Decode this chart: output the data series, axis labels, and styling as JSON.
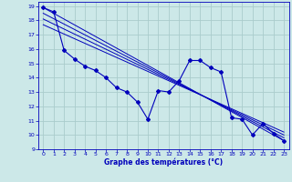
{
  "xlabel": "Graphe des températures (°C)",
  "bg_color": "#cce8e8",
  "grid_color": "#aacccc",
  "line_color": "#0000bb",
  "xlim": [
    -0.5,
    23.5
  ],
  "ylim": [
    9,
    19.3
  ],
  "xticks": [
    0,
    1,
    2,
    3,
    4,
    5,
    6,
    7,
    8,
    9,
    10,
    11,
    12,
    13,
    14,
    15,
    16,
    17,
    18,
    19,
    20,
    21,
    22,
    23
  ],
  "yticks": [
    9,
    10,
    11,
    12,
    13,
    14,
    15,
    16,
    17,
    18,
    19
  ],
  "wiggly": {
    "x": [
      0,
      1,
      2,
      3,
      4,
      5,
      6,
      7,
      8,
      9,
      10,
      11,
      12,
      13,
      14,
      15,
      16,
      17,
      18,
      19,
      20,
      21,
      22,
      23
    ],
    "y": [
      18.9,
      18.6,
      15.9,
      15.3,
      14.8,
      14.5,
      14.0,
      13.3,
      13.0,
      12.3,
      11.1,
      13.1,
      13.0,
      13.8,
      15.2,
      15.2,
      14.7,
      14.4,
      11.2,
      11.1,
      10.0,
      10.8,
      10.1,
      9.6
    ]
  },
  "smooth_lines": [
    {
      "x": [
        0,
        23
      ],
      "y": [
        18.9,
        9.6
      ]
    },
    {
      "x": [
        0,
        23
      ],
      "y": [
        18.5,
        9.8
      ]
    },
    {
      "x": [
        0,
        23
      ],
      "y": [
        18.1,
        10.0
      ]
    },
    {
      "x": [
        0,
        23
      ],
      "y": [
        17.7,
        10.2
      ]
    }
  ]
}
